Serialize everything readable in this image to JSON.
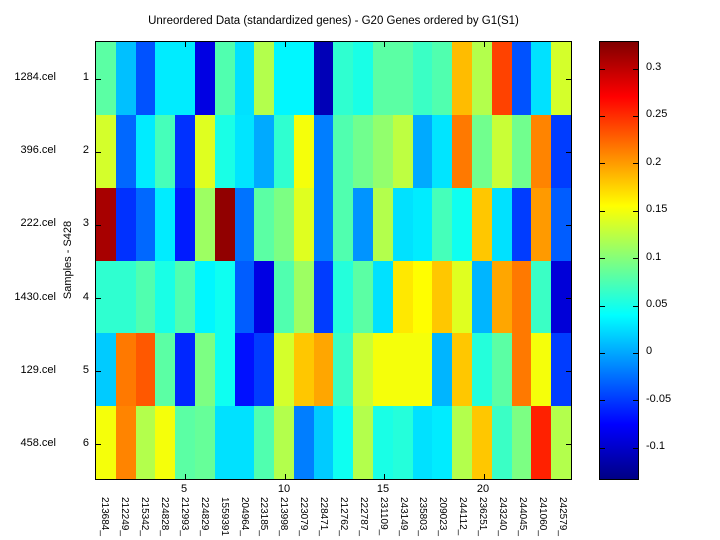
{
  "title": "Unreordered Data (standardized genes) - G20 Genes ordered by G1(S1)",
  "y_axis": {
    "label": "Samples - S428",
    "tick_labels": [
      "1",
      "2",
      "3",
      "4",
      "5",
      "6"
    ],
    "sample_names": [
      "1284.cel",
      "396.cel",
      "222.cel",
      "1430.cel",
      "129.cel",
      "458.cel"
    ]
  },
  "x_axis": {
    "tick_labels": [
      "5",
      "10",
      "15",
      "20"
    ],
    "tick_positions": [
      5,
      10,
      15,
      20
    ]
  },
  "colorbar": {
    "tick_labels": [
      "0.3",
      "0.25",
      "0.2",
      "0.15",
      "0.1",
      "0.05",
      "0",
      "-0.05",
      "-0.1"
    ],
    "tick_values": [
      0.3,
      0.25,
      0.2,
      0.15,
      0.1,
      0.05,
      0,
      -0.05,
      -0.1
    ]
  },
  "chart_data": {
    "type": "heatmap",
    "title": "Unreordered Data (standardized genes) - G20 Genes ordered by G1(S1)",
    "ylabel": "Samples - S428",
    "colormap": "jet",
    "caxis": [
      -0.135,
      0.328
    ],
    "rows": [
      "1284.cel",
      "396.cel",
      "222.cel",
      "1430.cel",
      "129.cel",
      "458.cel"
    ],
    "row_ticks": [
      "1",
      "2",
      "3",
      "4",
      "5",
      "6"
    ],
    "columns": [
      "213684_",
      "212249_",
      "215342_",
      "224828_",
      "212993_",
      "224829_",
      "1559391",
      "204964_",
      "223185_",
      "213998_",
      "223079_",
      "228471_",
      "212762_",
      "222787_",
      "231109_",
      "243149_",
      "235803_",
      "209023_",
      "244112_",
      "236251_",
      "243240_",
      "244045_",
      "241060_",
      "242579_"
    ],
    "x_ticks": [
      5,
      10,
      15,
      20
    ],
    "values": [
      [
        0.08,
        0.01,
        -0.04,
        0.03,
        0.03,
        -0.09,
        0.075,
        0.025,
        0.12,
        0.035,
        0.035,
        -0.11,
        0.06,
        0.05,
        0.08,
        0.08,
        0.065,
        0.075,
        0.185,
        0.12,
        0.24,
        -0.04,
        0.025,
        0.135
      ],
      [
        0.135,
        -0.03,
        0.03,
        0.07,
        -0.055,
        0.14,
        0.05,
        0.027,
        0.0,
        0.06,
        0.15,
        -0.02,
        0.075,
        0.09,
        0.105,
        0.125,
        0.0,
        0.027,
        0.215,
        0.09,
        0.13,
        0.09,
        0.21,
        -0.05
      ],
      [
        0.31,
        -0.055,
        -0.03,
        0.03,
        -0.065,
        0.11,
        0.32,
        -0.025,
        0.08,
        0.095,
        0.14,
        -0.02,
        0.075,
        -0.01,
        0.12,
        0.025,
        0.03,
        0.07,
        0.045,
        0.18,
        0.025,
        -0.05,
        0.2,
        -0.035
      ],
      [
        0.06,
        0.06,
        0.075,
        0.05,
        0.075,
        0.035,
        0.045,
        -0.035,
        -0.09,
        0.075,
        0.11,
        -0.05,
        0.055,
        0.08,
        0.025,
        0.165,
        0.155,
        0.18,
        0.14,
        0.005,
        0.195,
        0.215,
        0.065,
        -0.095
      ],
      [
        0.015,
        0.215,
        0.23,
        0.08,
        -0.06,
        0.095,
        0.045,
        -0.07,
        -0.05,
        0.135,
        0.18,
        0.195,
        0.065,
        0.13,
        0.15,
        0.15,
        0.15,
        0.005,
        0.18,
        0.055,
        0.08,
        0.215,
        0.15,
        -0.05
      ],
      [
        0.15,
        0.21,
        0.12,
        0.15,
        0.08,
        0.085,
        0.025,
        0.025,
        0.075,
        0.12,
        -0.02,
        0.015,
        0.045,
        0.12,
        0.05,
        0.055,
        0.025,
        0.03,
        0.12,
        0.18,
        0.065,
        0.095,
        0.255,
        0.12
      ]
    ]
  }
}
